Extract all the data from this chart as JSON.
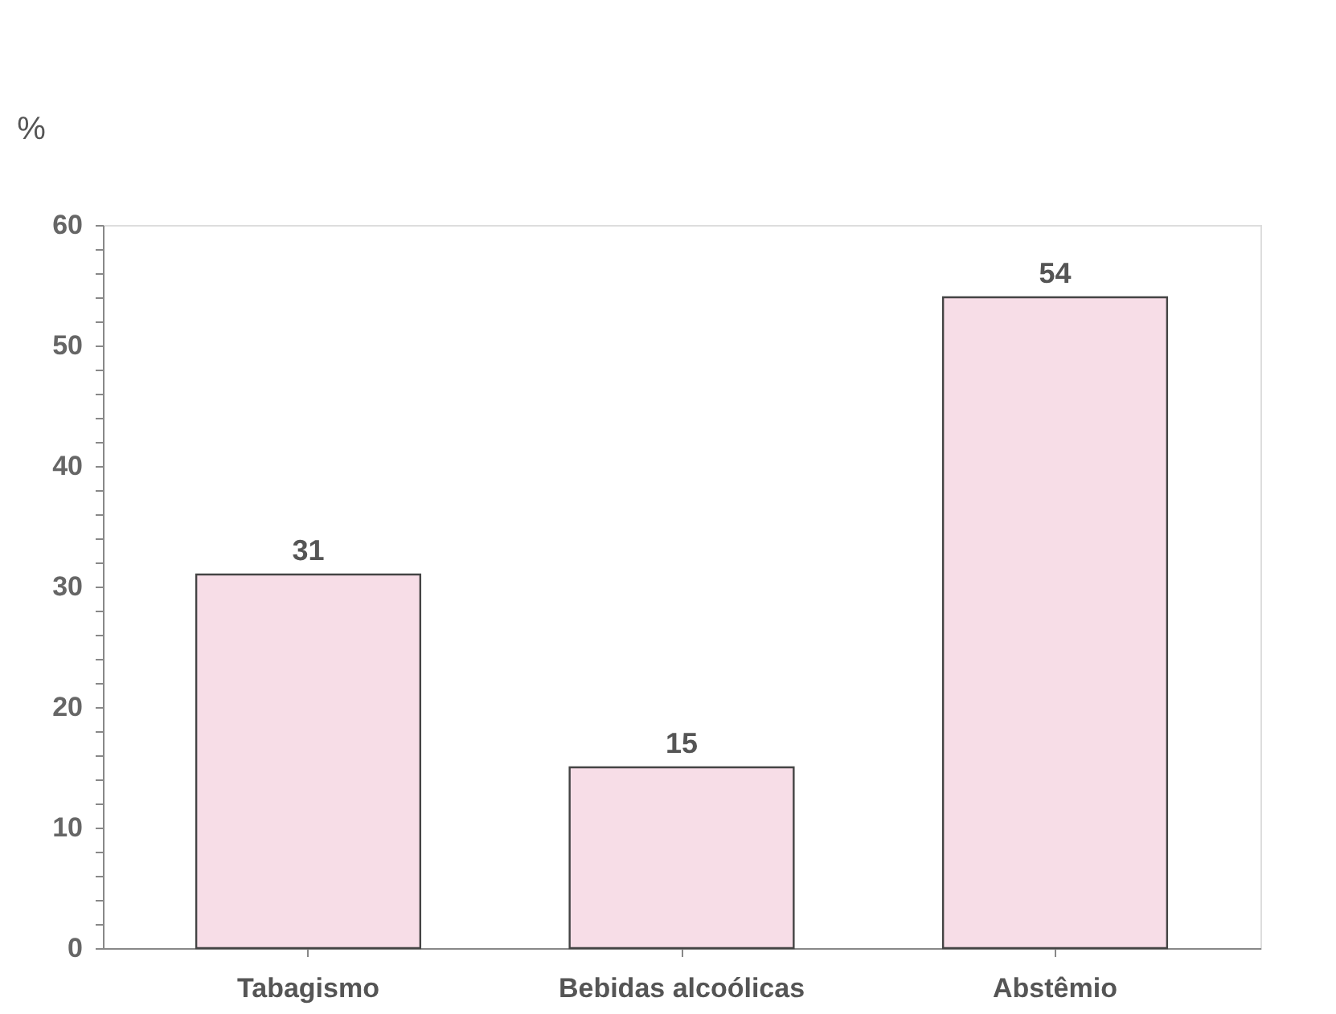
{
  "chart_data": {
    "type": "bar",
    "ylabel": "%",
    "categories": [
      "Tabagismo",
      "Bebidas alcoólicas",
      "Abstêmio"
    ],
    "values": [
      31,
      15,
      54
    ],
    "color": "#f7dde7",
    "data_labels": true,
    "grid": false,
    "ylim": [
      0,
      60
    ],
    "yticks": [
      0,
      {
        "value": 2,
        "label": null
      },
      {
        "value": 4,
        "label": null
      },
      {
        "value": 6,
        "label": null
      },
      {
        "value": 8,
        "label": null
      },
      10,
      {
        "value": 12,
        "label": null
      },
      {
        "value": 14,
        "label": null
      },
      {
        "value": 16,
        "label": null
      },
      {
        "value": 18,
        "label": null
      },
      20,
      {
        "value": 22,
        "label": null
      },
      {
        "value": 24,
        "label": null
      },
      {
        "value": 26,
        "label": null
      },
      {
        "value": 28,
        "label": null
      },
      30,
      {
        "value": 32,
        "label": null
      },
      {
        "value": 34,
        "label": null
      },
      {
        "value": 36,
        "label": null
      },
      {
        "value": 38,
        "label": null
      },
      40,
      {
        "value": 42,
        "label": null
      },
      {
        "value": 44,
        "label": null
      },
      {
        "value": 46,
        "label": null
      },
      {
        "value": 48,
        "label": null
      },
      50,
      {
        "value": 52,
        "label": null
      },
      {
        "value": 54,
        "label": null
      },
      {
        "value": 56,
        "label": null
      },
      {
        "value": 58,
        "label": null
      },
      60
    ]
  }
}
